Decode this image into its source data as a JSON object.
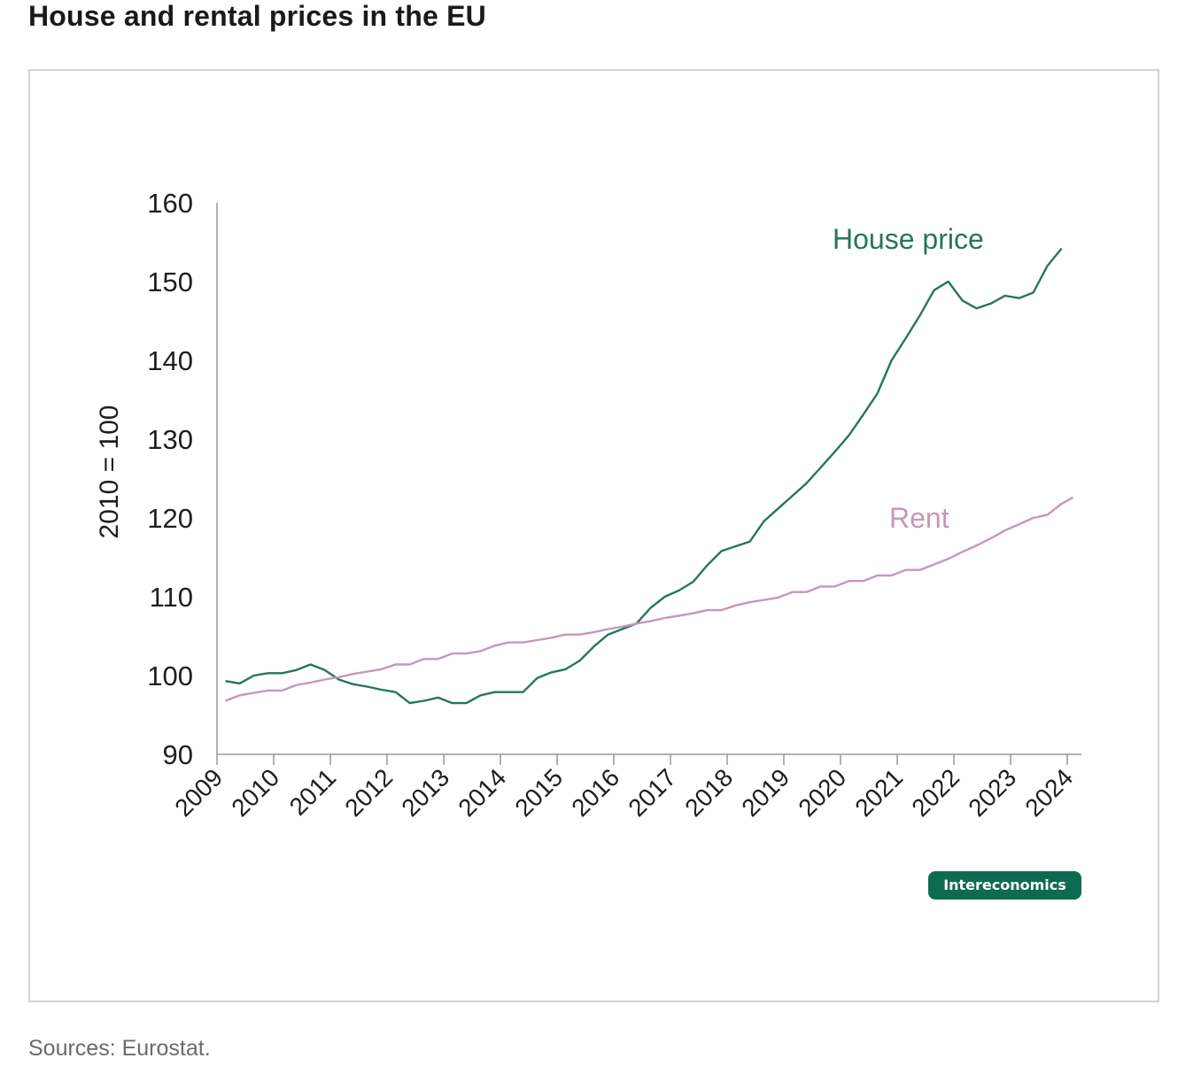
{
  "title": "House and rental prices in the EU",
  "source": "Sources: Eurostat.",
  "badge": "Intereconomics",
  "colors": {
    "house": "#23775a",
    "rent": "#c896b9",
    "axis": "#999999",
    "badge": "#0f6b4f"
  },
  "chart_data": {
    "type": "line",
    "title": "House and rental prices in the EU",
    "xlabel": "",
    "ylabel": "2010 = 100",
    "ylim": [
      90,
      160
    ],
    "xlim": [
      2009,
      2024
    ],
    "yticks": [
      90,
      100,
      110,
      120,
      130,
      140,
      150,
      160
    ],
    "xticks": [
      "2009",
      "2010",
      "2011",
      "2012",
      "2013",
      "2014",
      "2015",
      "2016",
      "2017",
      "2018",
      "2019",
      "2020",
      "2021",
      "2022",
      "2023",
      "2024"
    ],
    "grid": false,
    "legend": "inline labels",
    "series": [
      {
        "name": "House price",
        "x": [
          2009.15,
          2009.4,
          2009.65,
          2009.9,
          2010.15,
          2010.4,
          2010.65,
          2010.9,
          2011.15,
          2011.4,
          2011.65,
          2011.9,
          2012.15,
          2012.4,
          2012.65,
          2012.9,
          2013.15,
          2013.4,
          2013.65,
          2013.9,
          2014.15,
          2014.4,
          2014.65,
          2014.9,
          2015.15,
          2015.4,
          2015.65,
          2015.9,
          2016.15,
          2016.4,
          2016.65,
          2016.9,
          2017.15,
          2017.4,
          2017.65,
          2017.9,
          2018.15,
          2018.4,
          2018.65,
          2018.9,
          2019.15,
          2019.4,
          2019.65,
          2019.9,
          2020.15,
          2020.4,
          2020.65,
          2020.9,
          2021.15,
          2021.4,
          2021.65,
          2021.9,
          2022.15,
          2022.4,
          2022.65,
          2022.9,
          2023.15,
          2023.4,
          2023.65,
          2023.9
        ],
        "values": [
          99.3,
          99.0,
          100.0,
          100.3,
          100.3,
          100.7,
          101.4,
          100.7,
          99.5,
          98.9,
          98.6,
          98.2,
          97.9,
          96.5,
          96.8,
          97.2,
          96.5,
          96.5,
          97.5,
          97.9,
          97.9,
          97.9,
          99.7,
          100.4,
          100.8,
          101.9,
          103.7,
          105.2,
          105.9,
          106.6,
          108.6,
          110.0,
          110.8,
          111.9,
          114.0,
          115.8,
          116.4,
          117.0,
          119.6,
          121.2,
          122.8,
          124.4,
          126.4,
          128.4,
          130.5,
          133.1,
          135.8,
          140.0,
          142.8,
          145.7,
          148.9,
          150.0,
          147.6,
          146.6,
          147.2,
          148.2,
          147.9,
          148.6,
          152.0,
          154.2
        ]
      },
      {
        "name": "Rent",
        "x": [
          2009.15,
          2009.4,
          2009.65,
          2009.9,
          2010.15,
          2010.4,
          2010.65,
          2010.9,
          2011.15,
          2011.4,
          2011.65,
          2011.9,
          2012.15,
          2012.4,
          2012.65,
          2012.9,
          2013.15,
          2013.4,
          2013.65,
          2013.9,
          2014.15,
          2014.4,
          2014.65,
          2014.9,
          2015.15,
          2015.4,
          2015.65,
          2015.9,
          2016.15,
          2016.4,
          2016.65,
          2016.9,
          2017.15,
          2017.4,
          2017.65,
          2017.9,
          2018.15,
          2018.4,
          2018.65,
          2018.9,
          2019.15,
          2019.4,
          2019.65,
          2019.9,
          2020.15,
          2020.4,
          2020.65,
          2020.9,
          2021.15,
          2021.4,
          2021.65,
          2021.9,
          2022.15,
          2022.4,
          2022.65,
          2022.9,
          2023.15,
          2023.4,
          2023.65,
          2023.9,
          2024.1
        ],
        "values": [
          96.8,
          97.5,
          97.8,
          98.1,
          98.1,
          98.8,
          99.1,
          99.5,
          99.8,
          100.2,
          100.5,
          100.8,
          101.4,
          101.4,
          102.1,
          102.1,
          102.8,
          102.8,
          103.1,
          103.8,
          104.2,
          104.2,
          104.5,
          104.8,
          105.2,
          105.2,
          105.5,
          105.9,
          106.2,
          106.6,
          106.9,
          107.3,
          107.6,
          107.9,
          108.3,
          108.3,
          108.9,
          109.3,
          109.6,
          109.9,
          110.6,
          110.6,
          111.3,
          111.3,
          112.0,
          112.0,
          112.7,
          112.7,
          113.4,
          113.4,
          114.1,
          114.8,
          115.7,
          116.5,
          117.4,
          118.4,
          119.2,
          120.0,
          120.4,
          121.8,
          122.6
        ]
      }
    ],
    "annotations": [
      {
        "text": "House price",
        "series": "House price"
      },
      {
        "text": "Rent",
        "series": "Rent"
      }
    ]
  }
}
